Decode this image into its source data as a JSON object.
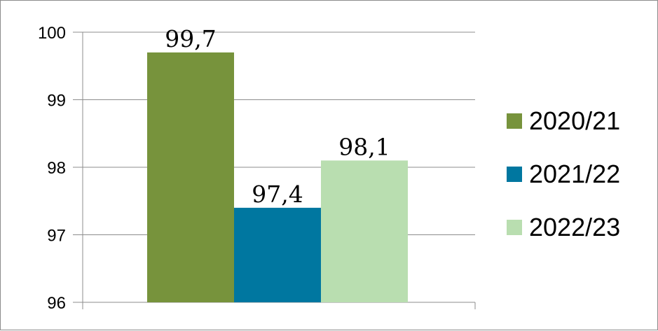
{
  "chart_data": {
    "type": "bar",
    "title": "",
    "xlabel": "",
    "ylabel": "",
    "ylim": [
      96,
      100
    ],
    "yticks": [
      96,
      97,
      98,
      99,
      100
    ],
    "grid": true,
    "legend_position": "right",
    "series": [
      {
        "name": "2020/21",
        "value": 99.7,
        "label": "99,7",
        "color": "#77933c"
      },
      {
        "name": "2021/22",
        "value": 97.4,
        "label": "97,4",
        "color": "#0077a0"
      },
      {
        "name": "2022/23",
        "value": 98.1,
        "label": "98,1",
        "color": "#b9deb0"
      }
    ]
  }
}
